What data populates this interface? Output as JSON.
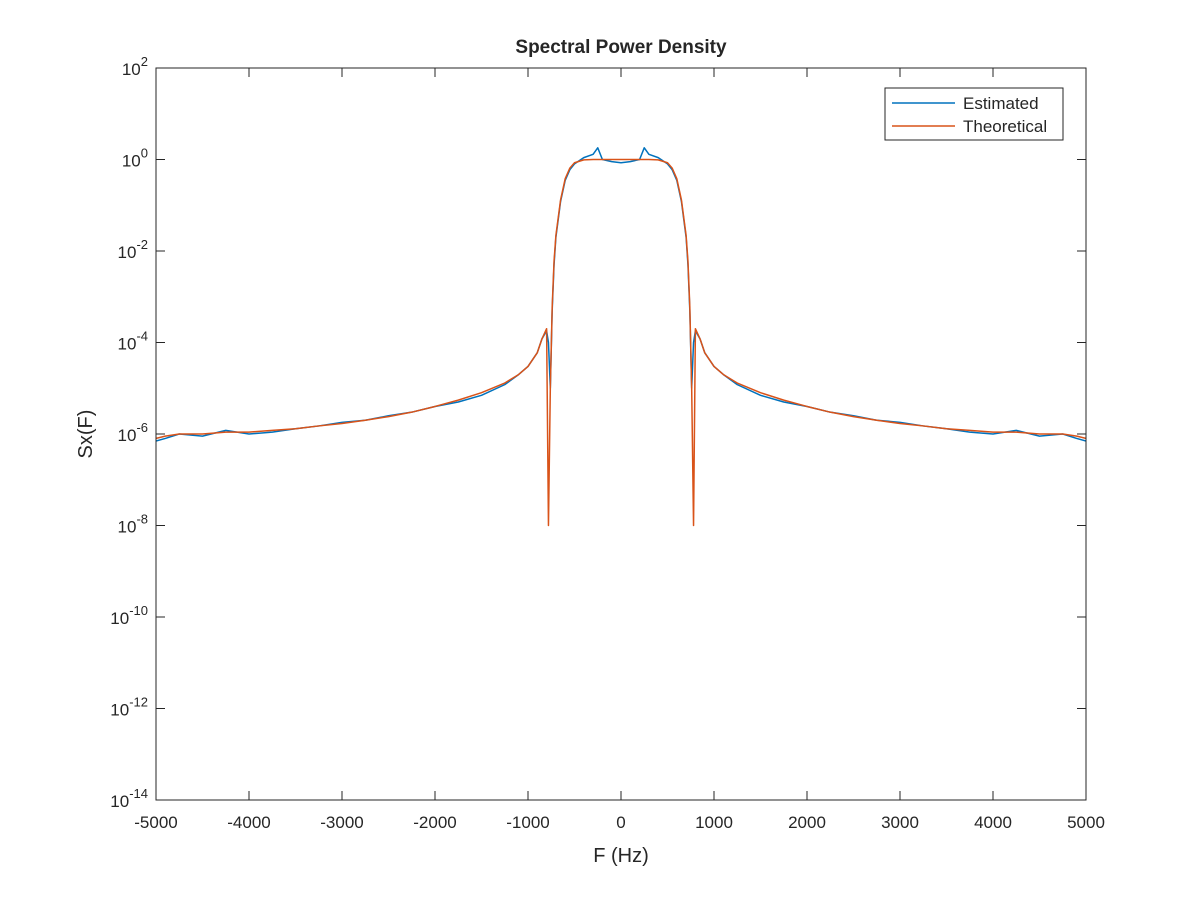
{
  "chart_data": {
    "type": "line",
    "title": "Spectral Power Density",
    "xlabel": "F (Hz)",
    "ylabel": "Sx(F)",
    "xlim": [
      -5000,
      5000
    ],
    "ylim": [
      1e-14,
      100
    ],
    "yscale": "log",
    "grid": false,
    "legend_position": "top-right",
    "x_ticks": [
      {
        "value": -5000,
        "label": "-5000"
      },
      {
        "value": -4000,
        "label": "-4000"
      },
      {
        "value": -3000,
        "label": "-3000"
      },
      {
        "value": -2000,
        "label": "-2000"
      },
      {
        "value": -1000,
        "label": "-1000"
      },
      {
        "value": 0,
        "label": "0"
      },
      {
        "value": 1000,
        "label": "1000"
      },
      {
        "value": 2000,
        "label": "2000"
      },
      {
        "value": 3000,
        "label": "3000"
      },
      {
        "value": 4000,
        "label": "4000"
      },
      {
        "value": 5000,
        "label": "5000"
      }
    ],
    "y_ticks": [
      {
        "value": 1e-14,
        "base": "10",
        "exp": "-14"
      },
      {
        "value": 1e-12,
        "base": "10",
        "exp": "-12"
      },
      {
        "value": 1e-10,
        "base": "10",
        "exp": "-10"
      },
      {
        "value": 1e-08,
        "base": "10",
        "exp": "-8"
      },
      {
        "value": 1e-06,
        "base": "10",
        "exp": "-6"
      },
      {
        "value": 0.0001,
        "base": "10",
        "exp": "-4"
      },
      {
        "value": 0.01,
        "base": "10",
        "exp": "-2"
      },
      {
        "value": 1,
        "base": "10",
        "exp": "0"
      },
      {
        "value": 100,
        "base": "10",
        "exp": "2"
      }
    ],
    "series": [
      {
        "name": "Estimated",
        "color": "#0072BD",
        "x": [
          -5000,
          -4900,
          -4750,
          -4500,
          -4250,
          -4000,
          -3750,
          -3500,
          -3250,
          -3000,
          -2750,
          -2500,
          -2250,
          -2000,
          -1750,
          -1500,
          -1250,
          -1100,
          -1000,
          -900,
          -850,
          -800,
          -780,
          -760,
          -740,
          -720,
          -700,
          -650,
          -600,
          -550,
          -500,
          -400,
          -300,
          -250,
          -200,
          -100,
          0,
          100,
          200,
          250,
          300,
          400,
          500,
          550,
          600,
          650,
          700,
          720,
          740,
          760,
          780,
          800,
          850,
          900,
          1000,
          1100,
          1250,
          1500,
          1750,
          2000,
          2250,
          2500,
          2750,
          3000,
          3250,
          3500,
          3750,
          4000,
          4250,
          4500,
          4750,
          4900,
          5000
        ],
        "y": [
          7e-07,
          8e-07,
          1e-06,
          9e-07,
          1.2e-06,
          1e-06,
          1.1e-06,
          1.3e-06,
          1.5e-06,
          1.8e-06,
          2e-06,
          2.5e-06,
          3e-06,
          4e-06,
          5e-06,
          7e-06,
          1.2e-05,
          2e-05,
          3e-05,
          6e-05,
          0.00012,
          0.00018,
          0.0001,
          1e-05,
          0.0005,
          0.005,
          0.02,
          0.12,
          0.35,
          0.6,
          0.8,
          1.1,
          1.3,
          1.8,
          1.0,
          0.9,
          0.85,
          0.9,
          1.0,
          1.8,
          1.3,
          1.1,
          0.8,
          0.6,
          0.35,
          0.12,
          0.02,
          0.005,
          0.0005,
          1e-05,
          0.0001,
          0.00018,
          0.00012,
          6e-05,
          3e-05,
          2e-05,
          1.2e-05,
          7e-06,
          5e-06,
          4e-06,
          3e-06,
          2.5e-06,
          2e-06,
          1.8e-06,
          1.5e-06,
          1.3e-06,
          1.1e-06,
          1e-06,
          1.2e-06,
          9e-07,
          1e-06,
          8e-07,
          7e-07
        ]
      },
      {
        "name": "Theoretical",
        "color": "#D95319",
        "x": [
          -5000,
          -4900,
          -4750,
          -4500,
          -4250,
          -4000,
          -3750,
          -3500,
          -3250,
          -3000,
          -2750,
          -2500,
          -2250,
          -2000,
          -1750,
          -1500,
          -1250,
          -1100,
          -1000,
          -900,
          -850,
          -800,
          -780,
          -760,
          -740,
          -720,
          -700,
          -650,
          -600,
          -550,
          -500,
          -400,
          -300,
          -200,
          -100,
          0,
          100,
          200,
          300,
          400,
          500,
          550,
          600,
          650,
          700,
          720,
          740,
          760,
          780,
          800,
          850,
          900,
          1000,
          1100,
          1250,
          1500,
          1750,
          2000,
          2250,
          2500,
          2750,
          3000,
          3250,
          3500,
          3750,
          4000,
          4250,
          4500,
          4750,
          4900,
          5000
        ],
        "y": [
          8e-07,
          9e-07,
          1e-06,
          1e-06,
          1.1e-06,
          1.1e-06,
          1.2e-06,
          1.3e-06,
          1.5e-06,
          1.7e-06,
          2e-06,
          2.4e-06,
          3e-06,
          4e-06,
          5.5e-06,
          8e-06,
          1.3e-05,
          2e-05,
          3e-05,
          6e-05,
          0.00012,
          0.0002,
          1e-08,
          1e-05,
          0.0006,
          0.006,
          0.022,
          0.13,
          0.38,
          0.65,
          0.85,
          0.98,
          1.0,
          1.0,
          1.0,
          1.0,
          1.0,
          1.0,
          1.0,
          0.98,
          0.85,
          0.65,
          0.38,
          0.13,
          0.022,
          0.006,
          0.0006,
          1e-05,
          1e-08,
          0.0002,
          0.00012,
          6e-05,
          3e-05,
          2e-05,
          1.3e-05,
          8e-06,
          5.5e-06,
          4e-06,
          3e-06,
          2.4e-06,
          2e-06,
          1.7e-06,
          1.5e-06,
          1.3e-06,
          1.2e-06,
          1.1e-06,
          1.1e-06,
          1e-06,
          1e-06,
          9e-07,
          8e-07
        ]
      }
    ]
  }
}
